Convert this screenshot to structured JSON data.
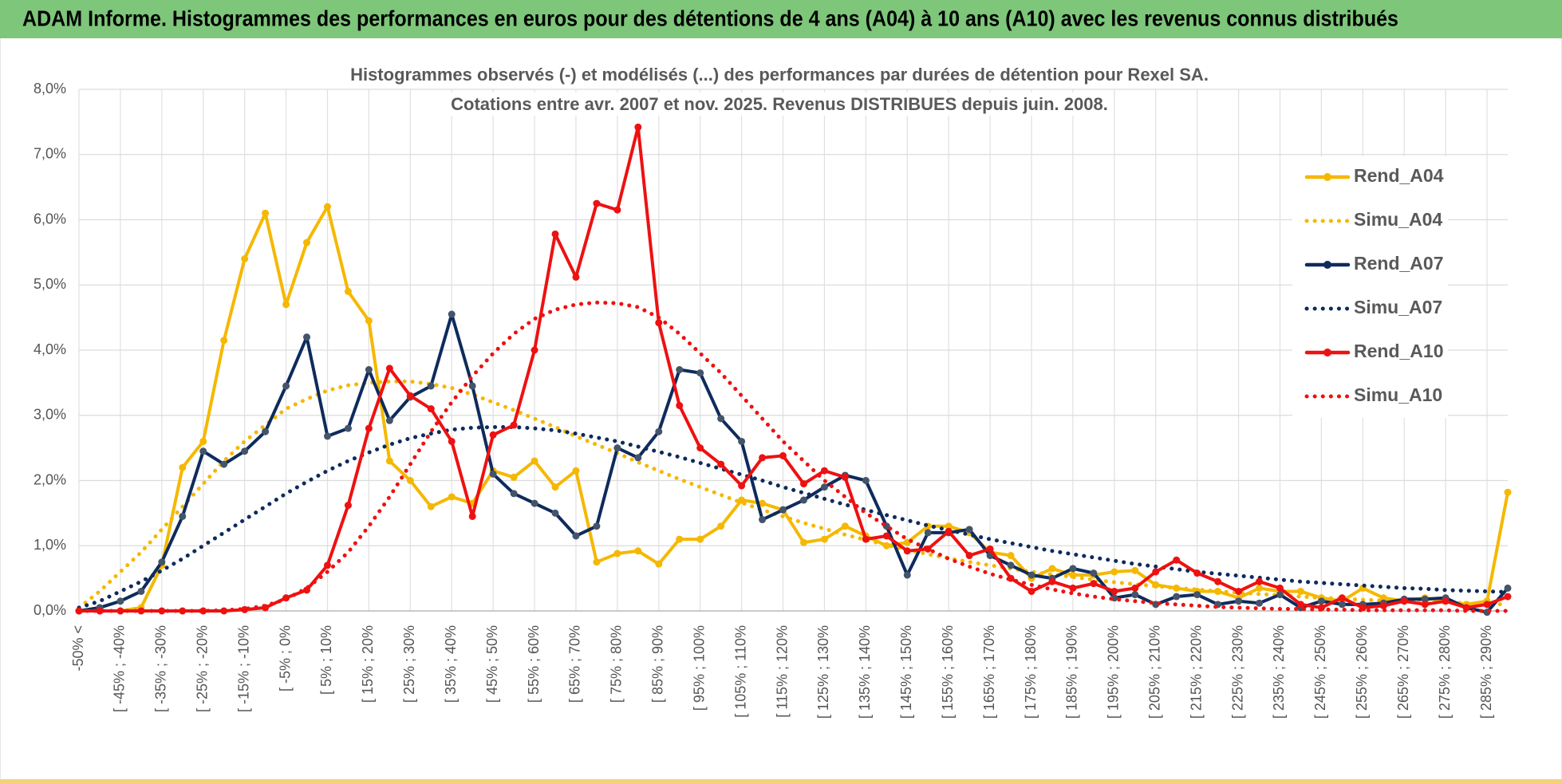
{
  "header": {
    "title": "ADAM Informe. Histogrammes des performances en euros pour des détentions de 4 ans (A04) à 10 ans (A10) avec les revenus connus distribués"
  },
  "chart_data": {
    "type": "line",
    "title": "Histogrammes observés (-) et modélisés (...) des performances par durées de détention pour Rexel SA.",
    "subtitle": "Cotations entre avr. 2007 et nov. 2025. Revenus DISTRIBUES depuis juin. 2008.",
    "categories": [
      "-50% <",
      null,
      "[ -45% ; -40%",
      null,
      "[ -35% ; -30%",
      null,
      "[ -25% ; -20%",
      null,
      "[ -15% ; -10%",
      null,
      "[ -5% ; 0%",
      null,
      "[ 5% ; 10%",
      null,
      "[ 15% ; 20%",
      null,
      "[ 25% ; 30%",
      null,
      "[ 35% ; 40%",
      null,
      "[ 45% ; 50%",
      null,
      "[ 55% ; 60%",
      null,
      "[ 65% ; 70%",
      null,
      "[ 75% ; 80%",
      null,
      "[ 85% ; 90%",
      null,
      "[ 95% ; 100%",
      null,
      "[ 105% ; 110%",
      null,
      "[ 115% ; 120%",
      null,
      "[ 125% ; 130%",
      null,
      "[ 135% ; 140%",
      null,
      "[ 145% ; 150%",
      null,
      "[ 155% ; 160%",
      null,
      "[ 165% ; 170%",
      null,
      "[ 175% ; 180%",
      null,
      "[ 185% ; 190%",
      null,
      "[ 195% ; 200%",
      null,
      "[ 205% ; 210%",
      null,
      "[ 215% ; 220%",
      null,
      "[ 225% ; 230%",
      null,
      "[ 235% ; 240%",
      null,
      "[ 245% ; 250%",
      null,
      "[ 255% ; 260%",
      null,
      "[ 265% ; 270%",
      null,
      "[ 275% ; 280%",
      null,
      "[ 285% ; 290%",
      null
    ],
    "series": [
      {
        "name": "Rend_A04",
        "color": "#f5b800",
        "style": "solid",
        "values": [
          0,
          0,
          0,
          0.05,
          0.7,
          2.2,
          2.6,
          4.15,
          5.4,
          6.1,
          4.7,
          5.65,
          6.2,
          4.9,
          4.45,
          2.3,
          2.0,
          1.6,
          1.75,
          1.65,
          2.15,
          2.05,
          2.3,
          1.9,
          2.15,
          0.75,
          0.88,
          0.92,
          0.72,
          1.1,
          1.1,
          1.3,
          1.7,
          1.65,
          1.55,
          1.05,
          1.1,
          1.3,
          1.15,
          1.0,
          1.05,
          1.3,
          1.3,
          1.2,
          0.9,
          0.85,
          0.5,
          0.65,
          0.55,
          0.55,
          0.6,
          0.62,
          0.4,
          0.35,
          0.3,
          0.3,
          0.2,
          0.35,
          0.3,
          0.3,
          0.2,
          0.15,
          0.35,
          0.2,
          0.15,
          0.2,
          0.15,
          0.1,
          0.15,
          1.82
        ]
      },
      {
        "name": "Simu_A04",
        "color": "#f5b800",
        "style": "dotted",
        "values": [
          0.05,
          0.3,
          0.6,
          0.9,
          1.25,
          1.6,
          1.95,
          2.3,
          2.6,
          2.85,
          3.1,
          3.25,
          3.38,
          3.46,
          3.5,
          3.52,
          3.52,
          3.48,
          3.42,
          3.32,
          3.2,
          3.08,
          2.95,
          2.82,
          2.68,
          2.55,
          2.42,
          2.28,
          2.15,
          2.02,
          1.9,
          1.78,
          1.66,
          1.55,
          1.45,
          1.35,
          1.26,
          1.17,
          1.09,
          1.01,
          0.94,
          0.87,
          0.81,
          0.75,
          0.7,
          0.65,
          0.6,
          0.56,
          0.52,
          0.48,
          0.44,
          0.41,
          0.38,
          0.35,
          0.33,
          0.3,
          0.28,
          0.26,
          0.24,
          0.22,
          0.2,
          0.19,
          0.17,
          0.16,
          0.15,
          0.14,
          0.13,
          0.12,
          0.11,
          0.1
        ]
      },
      {
        "name": "Rend_A07",
        "color": "#0e2b5c",
        "style": "solid",
        "values": [
          0,
          0.05,
          0.15,
          0.3,
          0.75,
          1.45,
          2.45,
          2.25,
          2.45,
          2.75,
          3.45,
          4.2,
          2.68,
          2.8,
          3.7,
          2.92,
          3.28,
          3.45,
          4.55,
          3.45,
          2.1,
          1.8,
          1.65,
          1.5,
          1.15,
          1.3,
          2.5,
          2.35,
          2.75,
          3.7,
          3.65,
          2.95,
          2.6,
          1.4,
          1.55,
          1.7,
          1.9,
          2.08,
          2.0,
          1.3,
          0.55,
          1.2,
          1.2,
          1.25,
          0.85,
          0.7,
          0.55,
          0.5,
          0.65,
          0.58,
          0.2,
          0.25,
          0.1,
          0.22,
          0.25,
          0.1,
          0.15,
          0.12,
          0.25,
          0.05,
          0.15,
          0.1,
          0.1,
          0.12,
          0.18,
          0.18,
          0.2,
          0.05,
          -0.02,
          0.35
        ]
      },
      {
        "name": "Simu_A07",
        "color": "#0e2b5c",
        "style": "dotted",
        "values": [
          0.05,
          0.15,
          0.3,
          0.45,
          0.62,
          0.8,
          1.0,
          1.2,
          1.4,
          1.6,
          1.8,
          1.98,
          2.15,
          2.3,
          2.43,
          2.55,
          2.65,
          2.72,
          2.78,
          2.81,
          2.82,
          2.82,
          2.8,
          2.77,
          2.72,
          2.66,
          2.6,
          2.52,
          2.44,
          2.36,
          2.27,
          2.18,
          2.09,
          2.0,
          1.9,
          1.81,
          1.72,
          1.63,
          1.55,
          1.47,
          1.39,
          1.31,
          1.24,
          1.17,
          1.1,
          1.04,
          0.98,
          0.92,
          0.87,
          0.82,
          0.77,
          0.72,
          0.68,
          0.64,
          0.6,
          0.57,
          0.54,
          0.51,
          0.48,
          0.45,
          0.43,
          0.41,
          0.39,
          0.37,
          0.35,
          0.34,
          0.32,
          0.31,
          0.3,
          0.29
        ]
      },
      {
        "name": "Rend_A10",
        "color": "#ee1111",
        "style": "solid",
        "values": [
          0,
          0,
          0,
          0,
          0,
          0,
          0,
          0,
          0.02,
          0.05,
          0.2,
          0.32,
          0.7,
          1.62,
          2.8,
          3.72,
          3.3,
          3.1,
          2.6,
          1.45,
          2.7,
          2.85,
          4.0,
          5.78,
          5.12,
          6.25,
          6.15,
          7.42,
          4.42,
          3.15,
          2.5,
          2.25,
          1.92,
          2.35,
          2.38,
          1.95,
          2.15,
          2.05,
          1.1,
          1.15,
          0.92,
          0.95,
          1.22,
          0.85,
          0.95,
          0.5,
          0.3,
          0.45,
          0.35,
          0.42,
          0.3,
          0.35,
          0.6,
          0.78,
          0.58,
          0.45,
          0.3,
          0.45,
          0.35,
          0.1,
          0.05,
          0.2,
          0.05,
          0.08,
          0.15,
          0.1,
          0.15,
          0.05,
          0.1,
          0.22
        ]
      },
      {
        "name": "Simu_A10",
        "color": "#ee1111",
        "style": "dotted",
        "values": [
          0,
          0,
          0,
          0,
          0,
          0,
          0,
          0.01,
          0.03,
          0.08,
          0.18,
          0.35,
          0.6,
          0.9,
          1.3,
          1.75,
          2.25,
          2.75,
          3.2,
          3.6,
          3.95,
          4.25,
          4.48,
          4.62,
          4.7,
          4.73,
          4.72,
          4.66,
          4.5,
          4.25,
          3.95,
          3.65,
          3.3,
          2.95,
          2.6,
          2.3,
          2.0,
          1.75,
          1.5,
          1.3,
          1.1,
          0.95,
          0.8,
          0.68,
          0.57,
          0.48,
          0.4,
          0.33,
          0.27,
          0.22,
          0.18,
          0.15,
          0.12,
          0.1,
          0.08,
          0.06,
          0.05,
          0.04,
          0.03,
          0.03,
          0.02,
          0.02,
          0.01,
          0.01,
          0.01,
          0.01,
          0.01,
          0,
          0,
          0
        ]
      }
    ],
    "ylim": [
      0,
      8
    ],
    "yticks": [
      {
        "value": 0,
        "label": "0,0%"
      },
      {
        "value": 1,
        "label": "1,0%"
      },
      {
        "value": 2,
        "label": "2,0%"
      },
      {
        "value": 3,
        "label": "3,0%"
      },
      {
        "value": 4,
        "label": "4,0%"
      },
      {
        "value": 5,
        "label": "5,0%"
      },
      {
        "value": 6,
        "label": "6,0%"
      },
      {
        "value": 7,
        "label": "7,0%"
      },
      {
        "value": 8,
        "label": "8,0%"
      }
    ],
    "grid": true,
    "legend": "right"
  }
}
